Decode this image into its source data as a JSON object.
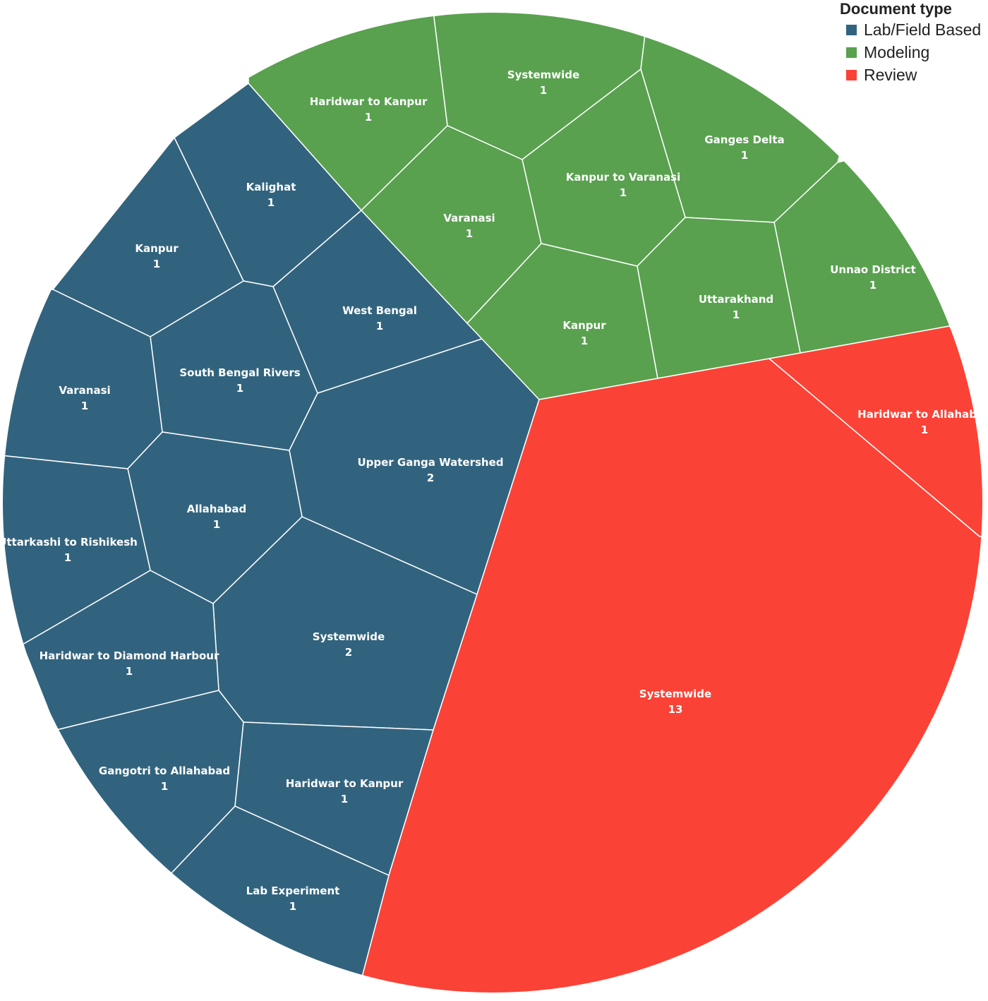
{
  "chart_data": {
    "type": "voronoi-treemap",
    "title": "",
    "legend": {
      "title": "Document type",
      "placement": "top-right",
      "entries": [
        {
          "name": "Lab/Field Based",
          "color": "#32637E"
        },
        {
          "name": "Modeling",
          "color": "#59A14F"
        },
        {
          "name": "Review",
          "color": "#FB4236"
        }
      ]
    },
    "cells": [
      {
        "category": "Lab/Field Based",
        "location": "Kalighat",
        "count": 1
      },
      {
        "category": "Lab/Field Based",
        "location": "Kanpur",
        "count": 1
      },
      {
        "category": "Lab/Field Based",
        "location": "West Bengal",
        "count": 1
      },
      {
        "category": "Lab/Field Based",
        "location": "South Bengal Rivers",
        "count": 1
      },
      {
        "category": "Lab/Field Based",
        "location": "Varanasi",
        "count": 1
      },
      {
        "category": "Lab/Field Based",
        "location": "Upper Ganga Watershed",
        "count": 2
      },
      {
        "category": "Lab/Field Based",
        "location": "Allahabad",
        "count": 1
      },
      {
        "category": "Lab/Field Based",
        "location": "Uttarkashi to Rishikesh",
        "count": 1
      },
      {
        "category": "Lab/Field Based",
        "location": "Systemwide",
        "count": 2
      },
      {
        "category": "Lab/Field Based",
        "location": "Haridwar to Diamond Harbour",
        "count": 1
      },
      {
        "category": "Lab/Field Based",
        "location": "Gangotri to Allahabad",
        "count": 1
      },
      {
        "category": "Lab/Field Based",
        "location": "Haridwar to Kanpur",
        "count": 1
      },
      {
        "category": "Lab/Field Based",
        "location": "Lab Experiment",
        "count": 1
      },
      {
        "category": "Modeling",
        "location": "Haridwar to Kanpur",
        "count": 1
      },
      {
        "category": "Modeling",
        "location": "Systemwide",
        "count": 1
      },
      {
        "category": "Modeling",
        "location": "Ganges Delta",
        "count": 1
      },
      {
        "category": "Modeling",
        "location": "Kanpur to Varanasi",
        "count": 1
      },
      {
        "category": "Modeling",
        "location": "Varanasi",
        "count": 1
      },
      {
        "category": "Modeling",
        "location": "Unnao District",
        "count": 1
      },
      {
        "category": "Modeling",
        "location": "Kanpur",
        "count": 1
      },
      {
        "category": "Modeling",
        "location": "Uttarakhand",
        "count": 1
      },
      {
        "category": "Review",
        "location": "Haridwar to Allahabad",
        "count": 1
      },
      {
        "category": "Review",
        "location": "Systemwide",
        "count": 13
      }
    ]
  }
}
